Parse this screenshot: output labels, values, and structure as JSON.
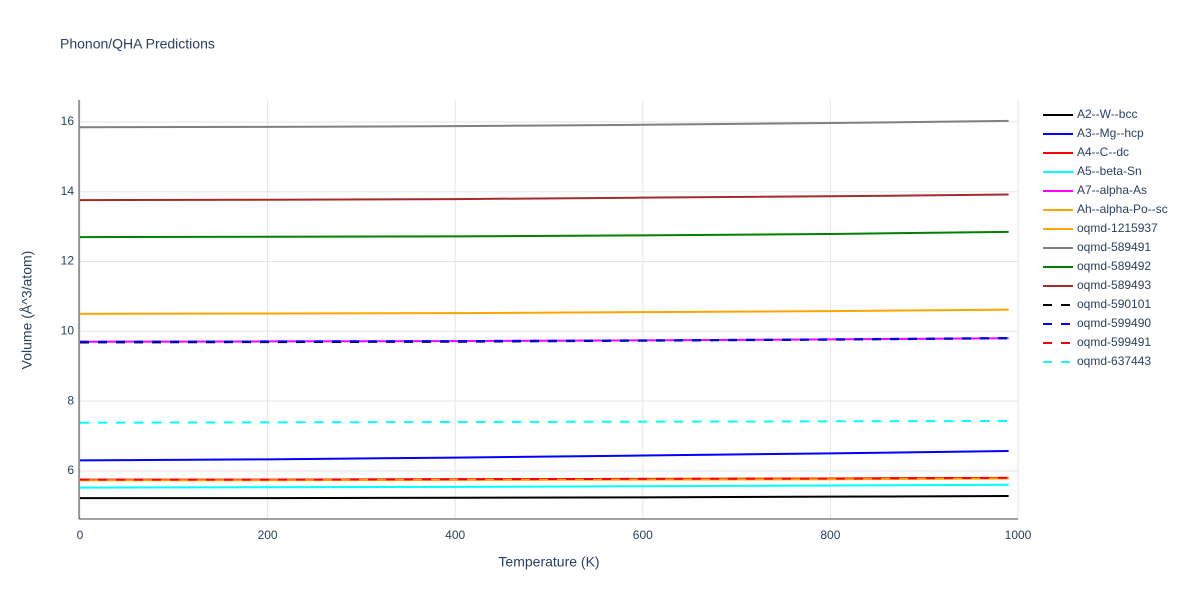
{
  "chart_data": {
    "type": "line",
    "title": "Phonon/QHA Predictions",
    "x_label": "Temperature (K)",
    "y_label": "Volume (Å^3/atom)",
    "x": [
      0,
      200,
      400,
      600,
      800,
      990
    ],
    "series": [
      {
        "name": "A2--W--bcc",
        "color": "#000000",
        "dash": "solid",
        "values": [
          5.22,
          5.22,
          5.23,
          5.24,
          5.26,
          5.28
        ]
      },
      {
        "name": "A3--Mg--hcp",
        "color": "#0000ff",
        "dash": "solid",
        "values": [
          6.3,
          6.33,
          6.38,
          6.44,
          6.5,
          6.57
        ]
      },
      {
        "name": "A4--C--dc",
        "color": "#ff0000",
        "dash": "solid",
        "values": [
          5.75,
          5.75,
          5.76,
          5.77,
          5.78,
          5.8
        ]
      },
      {
        "name": "A5--beta-Sn",
        "color": "#00ffff",
        "dash": "solid",
        "values": [
          5.52,
          5.53,
          5.54,
          5.56,
          5.58,
          5.6
        ]
      },
      {
        "name": "A7--alpha-As",
        "color": "#ff00ff",
        "dash": "solid",
        "values": [
          9.7,
          9.71,
          9.72,
          9.74,
          9.77,
          9.8
        ]
      },
      {
        "name": "Ah--alpha-Po--sc",
        "color": "#ffa500",
        "dash": "solid",
        "values": [
          5.73,
          5.73,
          5.74,
          5.75,
          5.76,
          5.78
        ]
      },
      {
        "name": "oqmd-1215937",
        "color": "#ffa500",
        "dash": "solid",
        "values": [
          10.5,
          10.51,
          10.52,
          10.55,
          10.58,
          10.62
        ]
      },
      {
        "name": "oqmd-589491",
        "color": "#808080",
        "dash": "solid",
        "values": [
          15.85,
          15.86,
          15.88,
          15.92,
          15.97,
          16.03
        ]
      },
      {
        "name": "oqmd-589492",
        "color": "#008000",
        "dash": "solid",
        "values": [
          12.7,
          12.71,
          12.72,
          12.75,
          12.79,
          12.85
        ]
      },
      {
        "name": "oqmd-589493",
        "color": "#a52a2a",
        "dash": "solid",
        "values": [
          13.76,
          13.77,
          13.79,
          13.83,
          13.87,
          13.92
        ]
      },
      {
        "name": "oqmd-590101",
        "color": "#000000",
        "dash": "dash",
        "values": [
          9.68,
          9.69,
          9.7,
          9.73,
          9.76,
          9.8
        ]
      },
      {
        "name": "oqmd-599490",
        "color": "#0000ff",
        "dash": "dash",
        "values": [
          9.7,
          9.71,
          9.72,
          9.74,
          9.77,
          9.81
        ]
      },
      {
        "name": "oqmd-599491",
        "color": "#ff0000",
        "dash": "dash",
        "values": [
          5.75,
          5.75,
          5.76,
          5.77,
          5.78,
          5.8
        ]
      },
      {
        "name": "oqmd-637443",
        "color": "#00ffff",
        "dash": "dash",
        "values": [
          7.38,
          7.39,
          7.4,
          7.41,
          7.42,
          7.43
        ]
      }
    ],
    "xlim": [
      0,
      1000
    ],
    "xticks": [
      0,
      200,
      400,
      600,
      800,
      1000
    ],
    "ylim": [
      4.62,
      16.63
    ],
    "yticks": [
      6,
      8,
      10,
      12,
      14,
      16
    ],
    "grid": true,
    "legend": "right"
  }
}
